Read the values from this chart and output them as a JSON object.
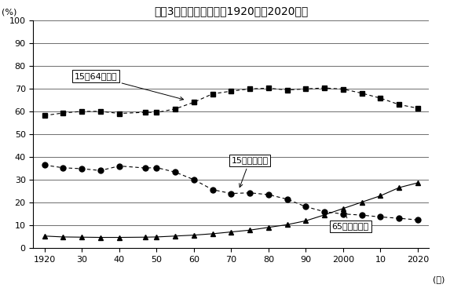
{
  "title": "年齢3区分割合の推移（1920年〜2020年）",
  "ylabel": "(%)",
  "xlabel": "(年)",
  "years": [
    1920,
    1925,
    1930,
    1935,
    1940,
    1947,
    1950,
    1955,
    1960,
    1965,
    1970,
    1975,
    1980,
    1985,
    1990,
    1995,
    2000,
    2005,
    2010,
    2015,
    2020
  ],
  "series_15_64": [
    58.3,
    59.4,
    60.1,
    60.1,
    59.2,
    59.7,
    59.6,
    61.2,
    64.1,
    67.8,
    69.0,
    70.0,
    70.3,
    69.5,
    70.0,
    70.4,
    69.9,
    68.1,
    65.9,
    63.1,
    61.5
  ],
  "series_under15": [
    36.5,
    35.3,
    34.9,
    34.1,
    36.1,
    35.2,
    35.4,
    33.4,
    30.1,
    25.7,
    24.0,
    24.3,
    23.5,
    21.5,
    18.2,
    16.0,
    15.0,
    14.5,
    13.7,
    13.1,
    12.4
  ],
  "series_over65": [
    5.3,
    4.9,
    4.8,
    4.7,
    4.7,
    4.8,
    4.9,
    5.3,
    5.7,
    6.3,
    7.1,
    7.9,
    9.1,
    10.3,
    12.0,
    14.6,
    17.4,
    20.2,
    23.0,
    26.6,
    28.7
  ],
  "xticks": [
    1920,
    1930,
    1940,
    1950,
    1960,
    1970,
    1980,
    1990,
    2000,
    2010,
    2020
  ],
  "xticklabels": [
    "1920",
    "30",
    "40",
    "50",
    "60",
    "70",
    "80",
    "90",
    "2000",
    "10",
    "2020"
  ],
  "yticks": [
    0,
    10,
    20,
    30,
    40,
    50,
    60,
    70,
    80,
    90,
    100
  ],
  "ylim": [
    0,
    100
  ],
  "xlim": [
    1917,
    2023
  ],
  "label_15_64": "15～64歳人口",
  "label_under15": "15歳未満人口",
  "label_over65": "65歳以上人口",
  "line_color": "#000000",
  "bg_color": "#ffffff"
}
